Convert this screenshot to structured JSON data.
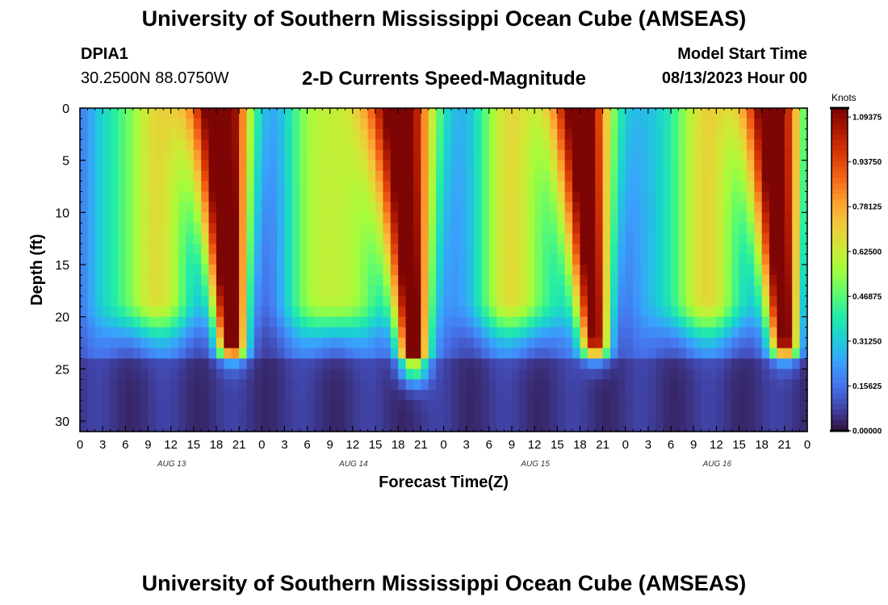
{
  "header": {
    "title": "University of Southern Mississippi Ocean Cube (AMSEAS)",
    "station": "DPIA1",
    "coords": "30.2500N  88.0750W",
    "subtitle": "2-D Currents Speed-Magnitude",
    "model_start_label": "Model Start Time",
    "model_start_value": "08/13/2023 Hour 00"
  },
  "footer": {
    "title": "University of Southern Mississippi Ocean Cube (AMSEAS)"
  },
  "chart_data": {
    "type": "heatmap",
    "title": "2-D Currents Speed-Magnitude",
    "xlabel": "Forecast Time(Z)",
    "ylabel": "Depth (ft)",
    "xlim": [
      0,
      96
    ],
    "ylim": [
      0,
      31
    ],
    "x_ticks": [
      0,
      3,
      6,
      9,
      12,
      15,
      18,
      21,
      24,
      27,
      30,
      33,
      36,
      39,
      42,
      45,
      48,
      51,
      54,
      57,
      60,
      63,
      66,
      69,
      72,
      75,
      78,
      81,
      84,
      87,
      90,
      93,
      96
    ],
    "x_tick_labels": [
      "0",
      "3",
      "6",
      "9",
      "12",
      "15",
      "18",
      "21",
      "0",
      "3",
      "6",
      "9",
      "12",
      "15",
      "18",
      "21",
      "0",
      "3",
      "6",
      "9",
      "12",
      "15",
      "18",
      "21",
      "0",
      "3",
      "6",
      "9",
      "12",
      "15",
      "18",
      "21",
      "0"
    ],
    "y_ticks": [
      0,
      5,
      10,
      15,
      20,
      25,
      30
    ],
    "y_tick_labels": [
      "0",
      "5",
      "10",
      "15",
      "20",
      "25",
      "30"
    ],
    "day_labels": [
      {
        "x": 12,
        "label": "AUG 13"
      },
      {
        "x": 36,
        "label": "AUG 14"
      },
      {
        "x": 60,
        "label": "AUG 15"
      },
      {
        "x": 84,
        "label": "AUG 16"
      }
    ],
    "colorbar": {
      "title": "Knots",
      "min": 0.0,
      "max": 1.125,
      "tick_values": [
        1.09375,
        0.9375,
        0.78125,
        0.625,
        0.46875,
        0.3125,
        0.15625,
        0.0
      ],
      "tick_labels": [
        "1.09375",
        "0.93750",
        "0.78125",
        "0.62500",
        "0.46875",
        "0.31250",
        "0.15625",
        "0.00000"
      ],
      "colors": [
        "#30123b",
        "#4145ab",
        "#4675ed",
        "#39a2fc",
        "#1bcfd4",
        "#24eca6",
        "#61fc6c",
        "#a4fc3b",
        "#d1e834",
        "#f3c63a",
        "#fe9b2d",
        "#f36315",
        "#d93806",
        "#b11901",
        "#7a0403"
      ]
    },
    "current_peaks": [
      {
        "x_hour": 18.5,
        "max_knots": 1.12,
        "bottom_depth_ft": 22
      },
      {
        "x_hour": 42.5,
        "max_knots": 1.12,
        "bottom_depth_ft": 24
      },
      {
        "x_hour": 66.5,
        "max_knots": 1.05,
        "bottom_depth_ft": 22
      },
      {
        "x_hour": 91.5,
        "max_knots": 1.05,
        "bottom_depth_ft": 22
      }
    ],
    "notes": "Surface-to-bottom current speed over a 96-hour forecast; strongest flow in four ebb/flood pulses near surface, weak (<0.2 kt) near bottom."
  }
}
